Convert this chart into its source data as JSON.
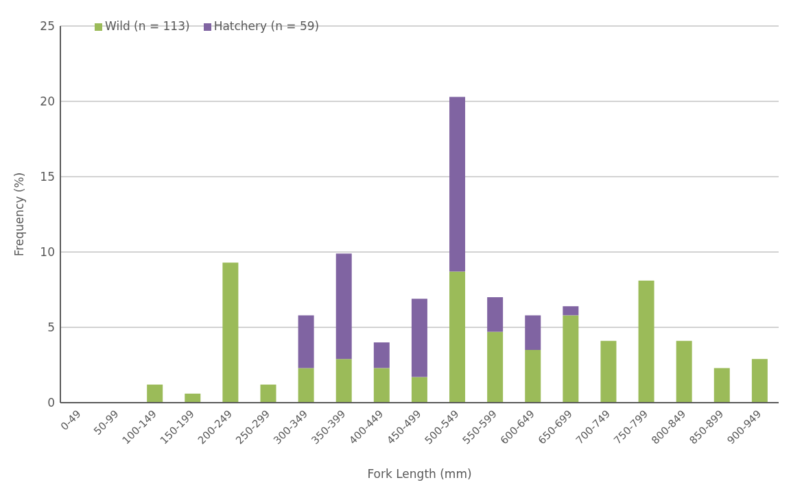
{
  "chart_data": {
    "type": "bar",
    "stacked": true,
    "xlabel": "Fork Length (mm)",
    "ylabel": "Frequency (%)",
    "categories": [
      "0-49",
      "50-99",
      "100-149",
      "150-199",
      "200-249",
      "250-299",
      "300-349",
      "350-399",
      "400-449",
      "450-499",
      "500-549",
      "550-599",
      "600-649",
      "650-699",
      "700-749",
      "750-799",
      "800-849",
      "850-899",
      "900-949"
    ],
    "series": [
      {
        "name": "Wild (n = 113)",
        "color": "#9bbb59",
        "values": [
          0,
          0,
          1.2,
          0.6,
          9.3,
          1.2,
          2.3,
          2.9,
          2.3,
          1.7,
          8.7,
          4.7,
          3.5,
          5.8,
          4.1,
          8.1,
          4.1,
          2.3,
          2.9
        ]
      },
      {
        "name": "Hatchery (n = 59)",
        "color": "#8064a2",
        "values": [
          0,
          0,
          0,
          0,
          0,
          0,
          3.5,
          7.0,
          1.7,
          5.2,
          11.6,
          2.3,
          2.3,
          0.6,
          0,
          0,
          0,
          0,
          0
        ]
      }
    ],
    "ylim": [
      0,
      25
    ],
    "yticks": [
      0,
      5,
      10,
      15,
      20,
      25
    ],
    "grid": "y",
    "legend": "top left"
  }
}
